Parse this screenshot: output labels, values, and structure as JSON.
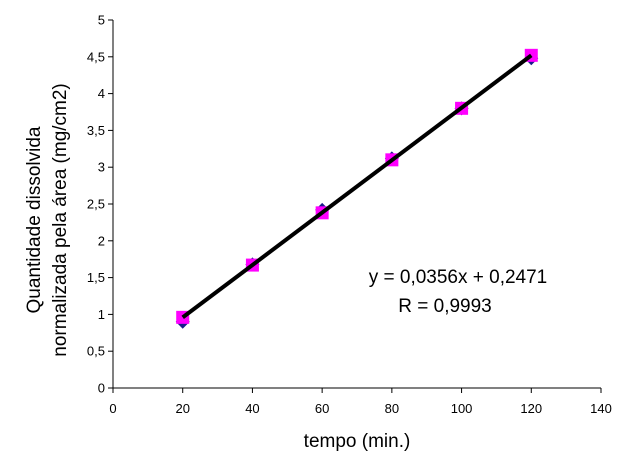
{
  "chart_data": {
    "type": "scatter",
    "title": "",
    "xlabel": "tempo (min.)",
    "ylabel_lines": [
      "Quantidade dissolvida",
      "normalizada pela área (mg/cm2)"
    ],
    "xlim": [
      0,
      140
    ],
    "ylim": [
      0,
      5
    ],
    "x_ticks": [
      0,
      20,
      40,
      60,
      80,
      100,
      120,
      140
    ],
    "y_ticks": [
      0,
      0.5,
      1,
      1.5,
      2,
      2.5,
      3,
      3.5,
      4,
      4.5,
      5
    ],
    "x_tick_labels": [
      "0",
      "20",
      "40",
      "60",
      "80",
      "100",
      "120",
      "140"
    ],
    "y_tick_labels": [
      "0",
      "0,5",
      "1",
      "1,5",
      "2",
      "2,5",
      "3",
      "3,5",
      "4",
      "4,5",
      "5"
    ],
    "grid": false,
    "series": [
      {
        "marker": "diamond",
        "color": "#1a1a8c",
        "x": [
          20,
          40,
          60,
          80,
          100,
          120
        ],
        "y": [
          0.9,
          1.68,
          2.42,
          3.12,
          3.8,
          4.48
        ]
      },
      {
        "marker": "square",
        "color": "#ff00ff",
        "x": [
          20,
          40,
          60,
          80,
          100,
          120
        ],
        "y": [
          0.96,
          1.67,
          2.38,
          3.1,
          3.8,
          4.52
        ]
      }
    ],
    "trendline": {
      "slope": 0.0356,
      "intercept": 0.2471,
      "x_range": [
        20,
        120
      ],
      "color": "#000000"
    },
    "annotations": [
      "y = 0,0356x + 0,2471",
      "R = 0,9993"
    ]
  }
}
